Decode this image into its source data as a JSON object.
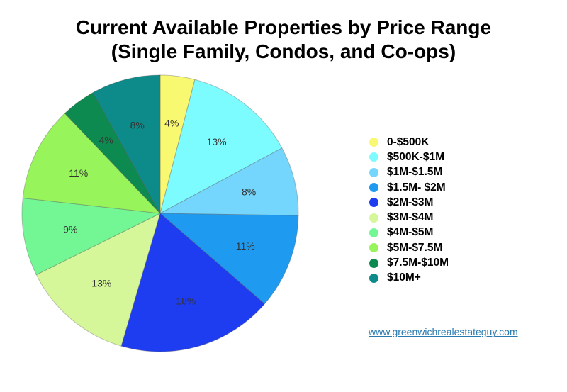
{
  "chart_data": {
    "type": "pie",
    "title_line1": "Current Available Properties by Price Range",
    "title_line2": "(Single Family, Condos, and Co-ops)",
    "categories": [
      "0-$500K",
      "$500K-$1M",
      "$1M-$1.5M",
      "$1.5M- $2M",
      "$2M-$3M",
      "$3M-$4M",
      "$4M-$5M",
      "$5M-$7.5M",
      "$7.5M-$10M",
      "$10M+"
    ],
    "values": [
      4,
      13,
      8,
      11,
      18,
      13,
      9,
      11,
      4,
      8
    ],
    "value_labels": [
      "4%",
      "13%",
      "8%",
      "11%",
      "18%",
      "13%",
      "9%",
      "11%",
      "4%",
      "8%"
    ],
    "colors": [
      "#f9f871",
      "#7dfcff",
      "#74d6fc",
      "#1e9bf0",
      "#1f3df0",
      "#d5f79a",
      "#73f794",
      "#97f55b",
      "#0d8a4f",
      "#0d8b8b"
    ],
    "legend_position": "right"
  },
  "footer": {
    "link_text": "www.greenwichrealestateguy.com"
  }
}
